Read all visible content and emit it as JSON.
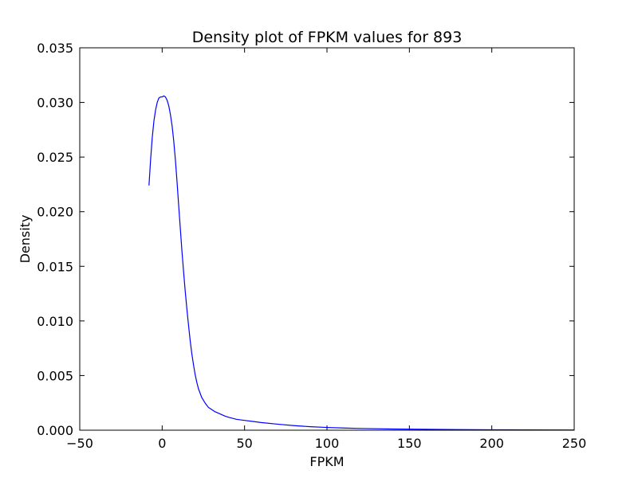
{
  "chart_data": {
    "type": "line",
    "title": "Density plot of FPKM values for 893",
    "xlabel": "FPKM",
    "ylabel": "Density",
    "xlim": [
      -50,
      250
    ],
    "ylim": [
      0,
      0.035
    ],
    "grid": false,
    "legend": "none",
    "xticks": [
      -50,
      0,
      50,
      100,
      150,
      200,
      250
    ],
    "xtick_labels": [
      "−50",
      "0",
      "50",
      "100",
      "150",
      "200",
      "250"
    ],
    "yticks": [
      0,
      0.005,
      0.01,
      0.015,
      0.02,
      0.025,
      0.03,
      0.035
    ],
    "ytick_labels": [
      "0.000",
      "0.005",
      "0.010",
      "0.015",
      "0.020",
      "0.025",
      "0.030",
      "0.035"
    ],
    "series": [
      {
        "color": "#0000ff",
        "x": [
          -8,
          -7,
          -6,
          -5,
          -4,
          -3,
          -2,
          -1,
          0,
          1,
          2,
          3,
          4,
          5,
          6,
          7,
          8,
          9,
          10,
          11,
          12,
          13,
          14,
          15,
          16,
          17,
          18,
          19,
          20,
          21,
          22,
          24,
          26,
          28,
          30,
          32,
          35,
          38,
          40,
          45,
          50,
          55,
          60,
          70,
          80,
          90,
          100,
          110,
          120,
          140,
          160,
          180,
          200,
          220,
          250
        ],
        "y": [
          0.0224,
          0.0248,
          0.0268,
          0.0283,
          0.0293,
          0.03,
          0.0304,
          0.0305,
          0.0305,
          0.0306,
          0.0305,
          0.0302,
          0.0297,
          0.0289,
          0.0279,
          0.0265,
          0.0248,
          0.0228,
          0.0206,
          0.0185,
          0.0164,
          0.0145,
          0.0127,
          0.0111,
          0.0096,
          0.0082,
          0.007,
          0.006,
          0.0051,
          0.0044,
          0.0038,
          0.003,
          0.0025,
          0.0021,
          0.0019,
          0.0017,
          0.0015,
          0.0013,
          0.0012,
          0.001,
          0.0009,
          0.0008,
          0.0007,
          0.00055,
          0.00042,
          0.00032,
          0.00025,
          0.0002,
          0.00016,
          0.00011,
          8e-05,
          6e-05,
          4e-05,
          3e-05,
          2e-05
        ]
      }
    ]
  }
}
